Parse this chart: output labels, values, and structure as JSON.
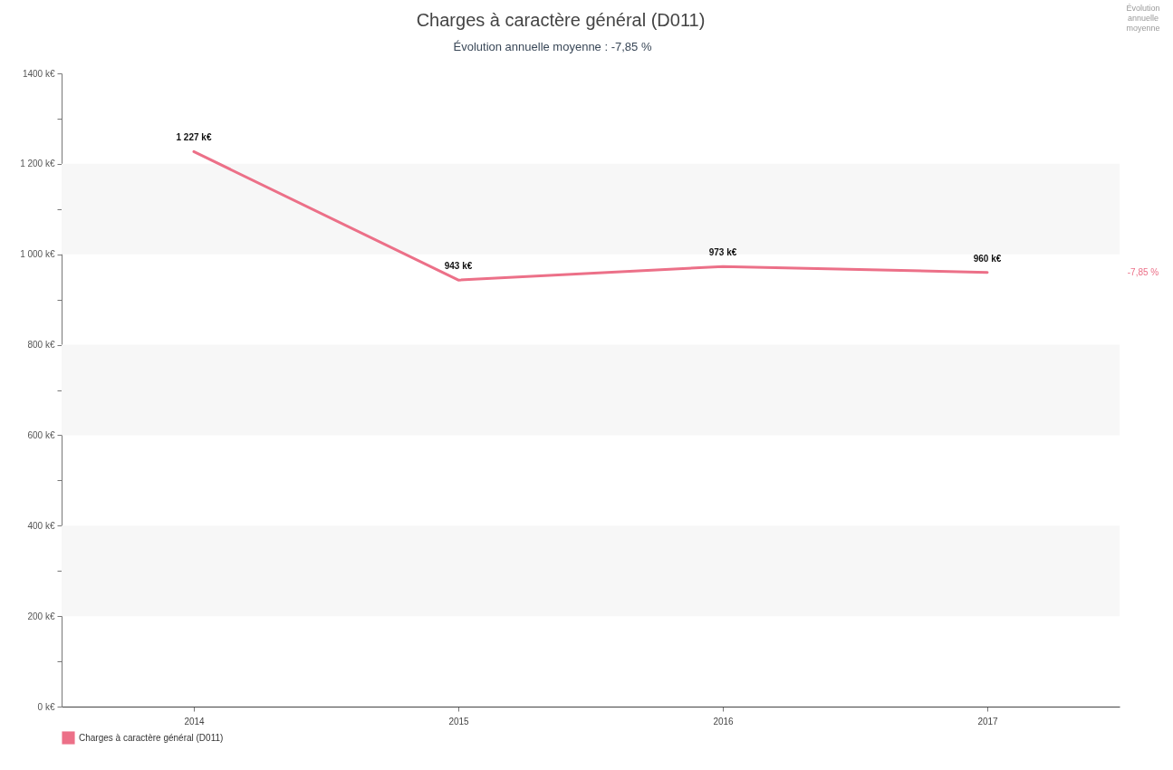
{
  "chart_data": {
    "type": "line",
    "title": "Charges à caractère général (D011)",
    "subtitle": "Évolution annuelle moyenne : -7,85 %",
    "categories": [
      "2014",
      "2015",
      "2016",
      "2017"
    ],
    "series": [
      {
        "name": "Charges à caractère général (D011)",
        "color": "#ec7088",
        "values": [
          1227,
          943,
          973,
          960
        ],
        "value_labels": [
          "1 227 k€",
          "943 k€",
          "973 k€",
          "960 k€"
        ]
      }
    ],
    "ylim": [
      0,
      1400
    ],
    "yticks": [
      {
        "value": 0,
        "label": "0 k€"
      },
      {
        "value": 100,
        "label": null
      },
      {
        "value": 200,
        "label": "200 k€"
      },
      {
        "value": 300,
        "label": null
      },
      {
        "value": 400,
        "label": "400 k€"
      },
      {
        "value": 500,
        "label": null
      },
      {
        "value": 600,
        "label": "600 k€"
      },
      {
        "value": 700,
        "label": null
      },
      {
        "value": 800,
        "label": "800 k€"
      },
      {
        "value": 900,
        "label": null
      },
      {
        "value": 1000,
        "label": "1 000 k€"
      },
      {
        "value": 1100,
        "label": null
      },
      {
        "value": 1200,
        "label": "1 200 k€"
      },
      {
        "value": 1300,
        "label": null
      },
      {
        "value": 1400,
        "label": "1400 k€"
      }
    ],
    "bands": [
      {
        "axis": "y",
        "from": 200,
        "to": 400,
        "color": "#f7f7f7"
      },
      {
        "axis": "y",
        "from": 600,
        "to": 800,
        "color": "#f7f7f7"
      },
      {
        "axis": "y",
        "from": 1000,
        "to": 1200,
        "color": "#f7f7f7"
      }
    ],
    "legend": "bottom left",
    "annotations": [
      "Évolution annuelle moyenne",
      "-7,85 %"
    ]
  }
}
